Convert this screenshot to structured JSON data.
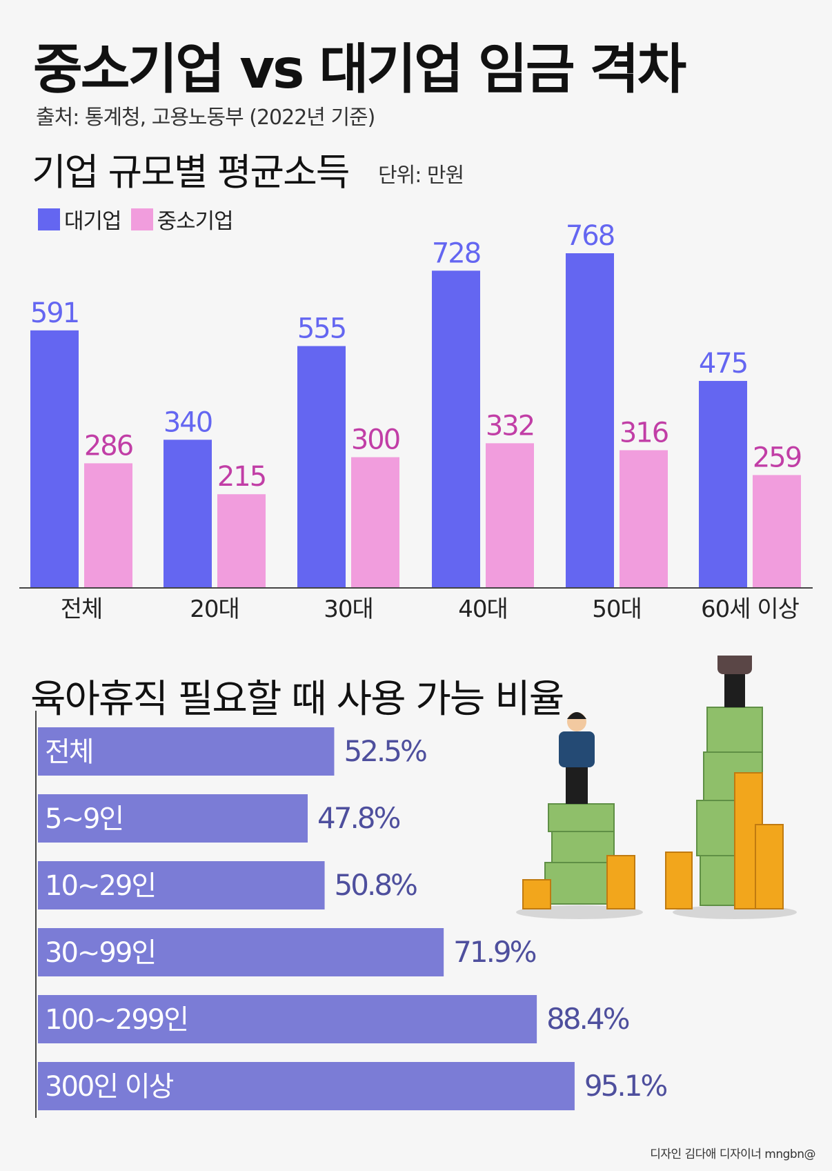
{
  "title": "중소기업 vs 대기업 임금 격차",
  "source": "출처: 통계청, 고용노동부 (2022년 기준)",
  "colors": {
    "large": "#6466f1",
    "small": "#f19ddd",
    "small_label": "#c13ea6",
    "hbar": "#7b7cd6",
    "hbar_value": "#4e4f9d"
  },
  "chart_data": [
    {
      "type": "bar",
      "title": "기업 규모별 평균소득",
      "unit": "단위: 만원",
      "categories": [
        "전체",
        "20대",
        "30대",
        "40대",
        "50대",
        "60세 이상"
      ],
      "series": [
        {
          "name": "대기업",
          "values": [
            591,
            340,
            555,
            728,
            768,
            475
          ]
        },
        {
          "name": "중소기업",
          "values": [
            286,
            215,
            300,
            332,
            316,
            259
          ]
        }
      ],
      "legend": "top-left",
      "ylim": [
        0,
        900
      ],
      "grid": false
    },
    {
      "type": "bar",
      "orientation": "horizontal",
      "title": "육아휴직 필요할 때 사용 가능 비율",
      "categories": [
        "전체",
        "5~9인",
        "10~29인",
        "30~99인",
        "100~299인",
        "300인 이상"
      ],
      "values": [
        52.5,
        47.8,
        50.8,
        71.9,
        88.4,
        95.1
      ],
      "value_labels": [
        "52.5%",
        "47.8%",
        "50.8%",
        "71.9%",
        "88.4%",
        "95.1%"
      ],
      "xlim": [
        0,
        100
      ],
      "grid": false
    }
  ],
  "credit": "디자인 김다애 디자이너 mngbn@"
}
